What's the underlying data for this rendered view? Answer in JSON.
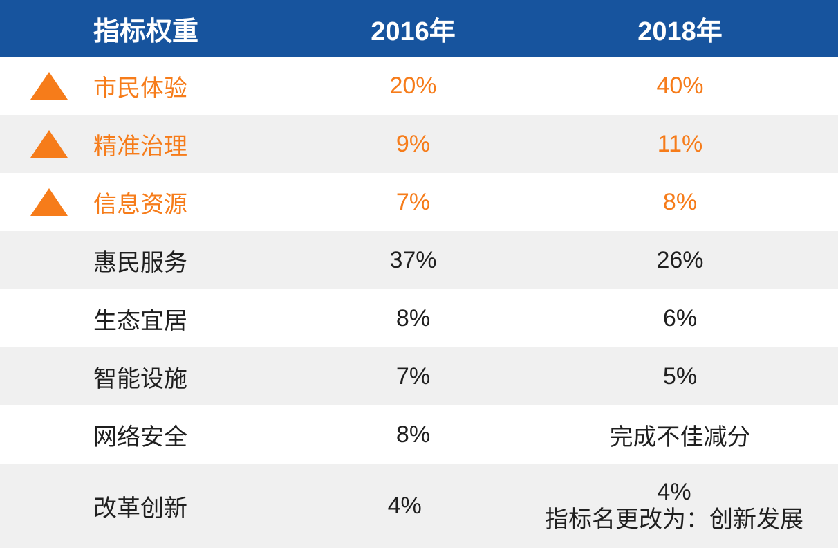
{
  "chart_data": {
    "type": "table",
    "columns": [
      "指标权重",
      "2016年",
      "2018年"
    ],
    "rows": [
      {
        "indicator": "市民体验",
        "w2016": "20%",
        "w2018": "40%",
        "highlighted": true,
        "trend_icon": "up-triangle"
      },
      {
        "indicator": "精准治理",
        "w2016": "9%",
        "w2018": "11%",
        "highlighted": true,
        "trend_icon": "up-triangle"
      },
      {
        "indicator": "信息资源",
        "w2016": "7%",
        "w2018": "8%",
        "highlighted": true,
        "trend_icon": "up-triangle"
      },
      {
        "indicator": "惠民服务",
        "w2016": "37%",
        "w2018": "26%",
        "highlighted": false
      },
      {
        "indicator": "生态宜居",
        "w2016": "8%",
        "w2018": "6%",
        "highlighted": false
      },
      {
        "indicator": "智能设施",
        "w2016": "7%",
        "w2018": "5%",
        "highlighted": false
      },
      {
        "indicator": "网络安全",
        "w2016": "8%",
        "w2018": "完成不佳减分",
        "highlighted": false
      },
      {
        "indicator": "改革创新",
        "w2016": "4%",
        "w2018": "4%",
        "w2018_note": "指标名更改为：创新发展",
        "highlighted": false
      }
    ],
    "legend_position": "none",
    "grid": "off"
  },
  "icons": {
    "trend_up": "up-triangle"
  },
  "colors": {
    "header_bg": "#17549e",
    "header_text": "#ffffff",
    "highlight_orange": "#f67c1a",
    "row_alt_bg": "#f0f0f0",
    "row_bg": "#ffffff",
    "body_text": "#1f1f1f"
  }
}
